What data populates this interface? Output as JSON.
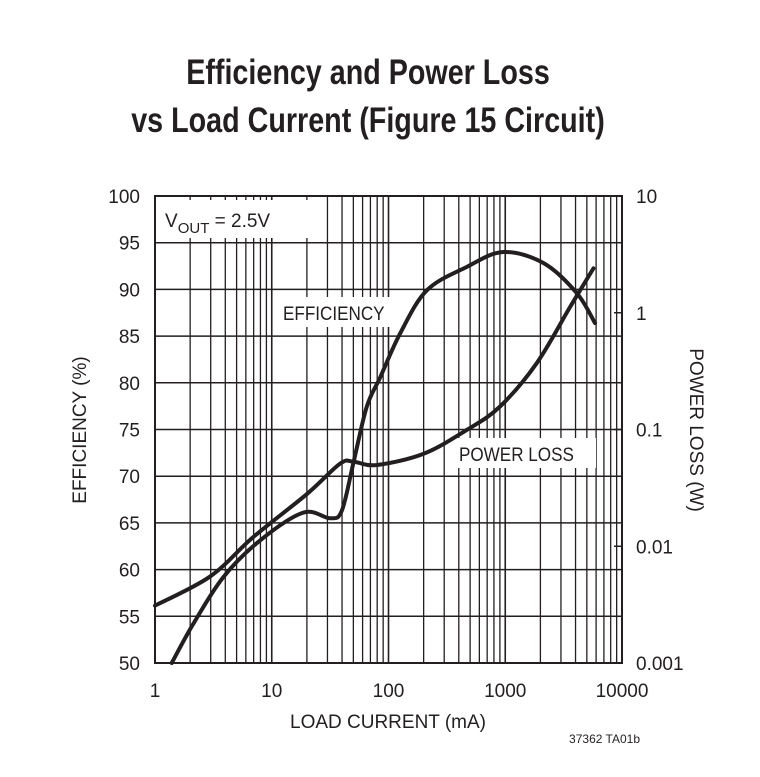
{
  "chart_data": {
    "type": "line",
    "title_lines": [
      "Efficiency and Power Loss",
      "vs Load Current (Figure 15 Circuit)"
    ],
    "xlabel": "LOAD CURRENT (mA)",
    "ylabel": "EFFICIENCY (%)",
    "y2label": "POWER LOSS (W)",
    "x_scale": "log",
    "xlim": [
      1,
      10000
    ],
    "ylim": [
      50,
      100
    ],
    "y2_scale": "log",
    "y2lim": [
      0.001,
      10
    ],
    "grid": true,
    "x_ticks": [
      "1",
      "10",
      "100",
      "1000",
      "10000"
    ],
    "y_ticks": [
      "100",
      "95",
      "90",
      "85",
      "80",
      "75",
      "70",
      "65",
      "60",
      "55",
      "50"
    ],
    "y2_ticks": [
      "10",
      "1",
      "0.1",
      "0.01",
      "0.001"
    ],
    "annotation": {
      "main": "V",
      "sub": "OUT",
      "rest": " = 2.5V"
    },
    "footnote": "37362 TA01b",
    "series": [
      {
        "name": "EFFICIENCY",
        "axis": "left",
        "x": [
          1.39,
          2.13,
          3.85,
          7.9,
          18.6,
          31.5,
          39.8,
          50,
          65,
          85,
          126,
          213,
          467,
          960,
          2140,
          4100,
          5870
        ],
        "y": [
          50,
          54.2,
          59.2,
          63.1,
          66.1,
          65.5,
          66.3,
          71.4,
          77.4,
          80.6,
          85.3,
          89.9,
          92.4,
          94.0,
          92.8,
          89.6,
          86.4
        ]
      },
      {
        "name": "POWER LOSS",
        "axis": "right",
        "x": [
          1,
          2.96,
          6.95,
          20,
          38.5,
          50,
          79,
          200,
          467,
          900,
          1860,
          3590,
          5690
        ],
        "y": [
          0.0031,
          0.0055,
          0.012,
          0.028,
          0.051,
          0.053,
          0.0496,
          0.062,
          0.099,
          0.157,
          0.37,
          1.12,
          2.4
        ]
      }
    ]
  }
}
